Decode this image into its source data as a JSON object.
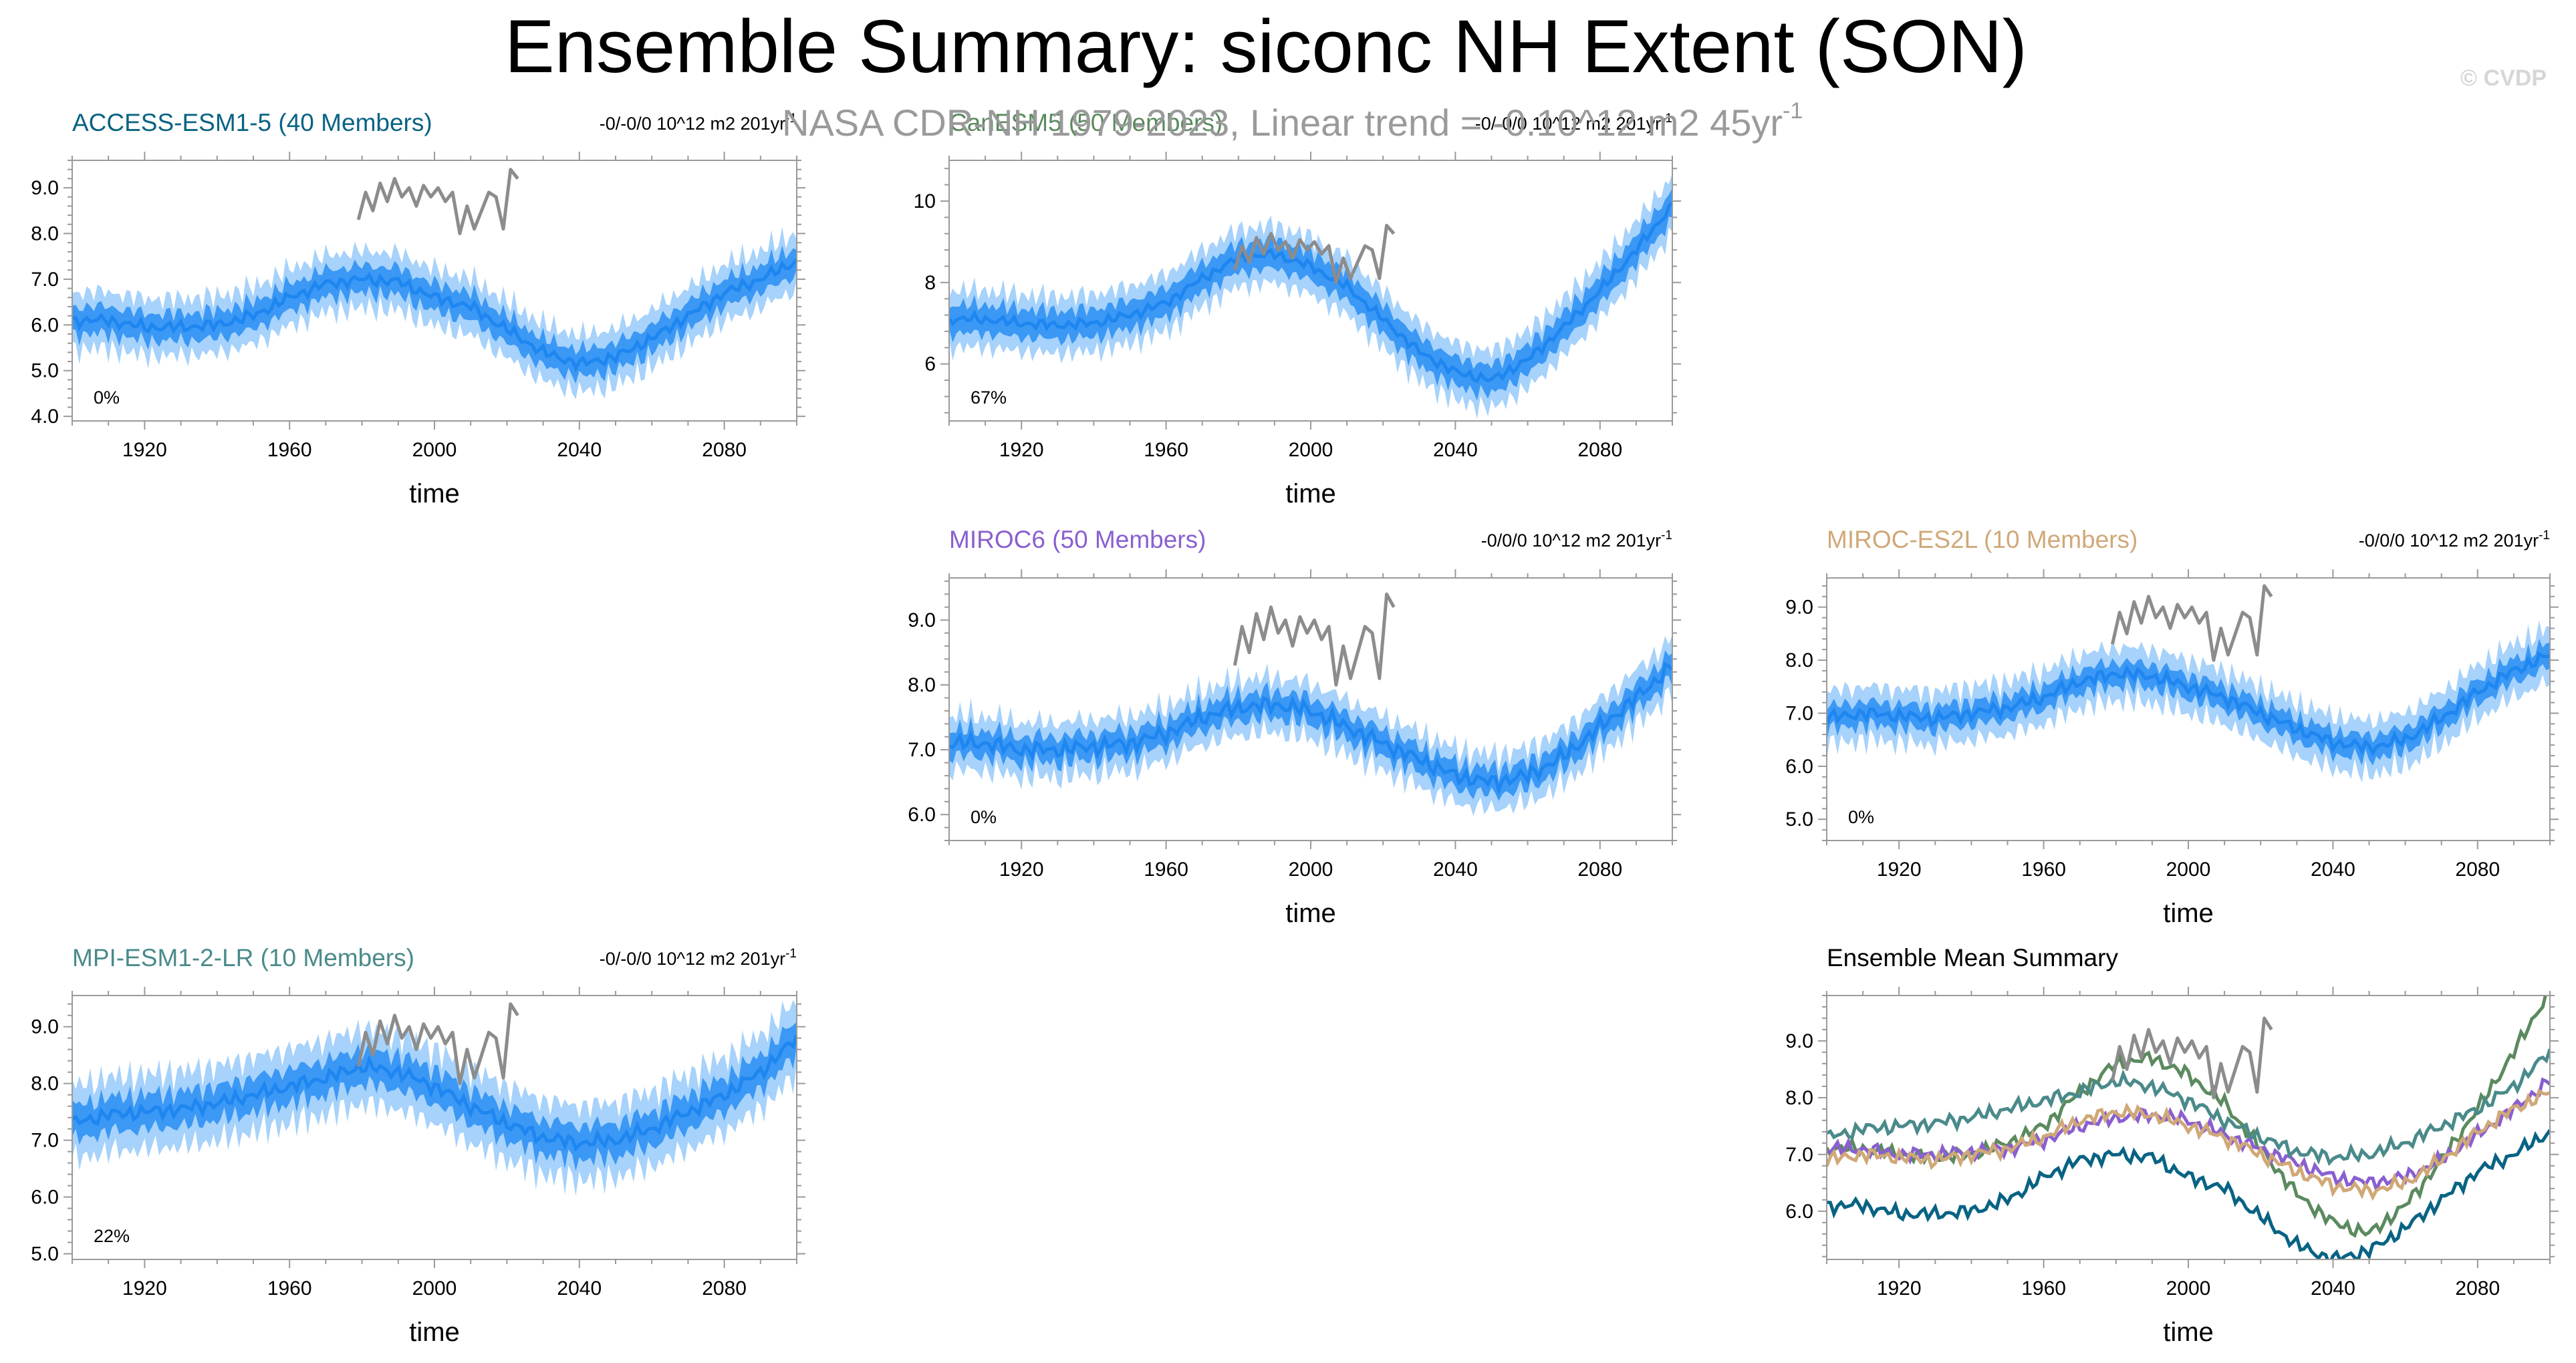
{
  "figure": {
    "title": "Ensemble Summary: siconc NH Extent (SON)",
    "observations_note": "NASA CDR-NH 1979-2023, Linear trend = -0.10^12 m2 45yr",
    "observations_note_superscript": "-1",
    "credit": "© CVDP"
  },
  "colors": {
    "ensemble_mean": "#1e86f0",
    "inner_band": "#3b98f5",
    "outer_band": "#a6d2fb",
    "observations": "#8c8c8c",
    "ACCESS-ESM1-5": "#086383",
    "CanESM5": "#5b8a5e",
    "MIROC6": "#8a5fd0",
    "MIROC-ES2L": "#d0a878",
    "MPI-ESM1-2-LR": "#4a8a8a"
  },
  "chart_data": [
    {
      "type": "line",
      "title": "ACCESS-ESM1-5 (40 Members)",
      "trend_text": "-0/-0/0 10^12 m2 201yr",
      "trend_superscript": "-1",
      "percent_label": "0%",
      "xlabel": "time",
      "xlim": [
        1900,
        2100
      ],
      "ylim": [
        3.9,
        9.6
      ],
      "x_ticks": [
        1920,
        1960,
        2000,
        2040,
        2080
      ],
      "y_ticks": [
        4.0,
        5.0,
        6.0,
        7.0,
        8.0,
        9.0
      ],
      "y_tick_labels": [
        "4.0",
        "5.0",
        "6.0",
        "7.0",
        "8.0",
        "9.0"
      ],
      "ensemble_mean": {
        "x": [
          1900,
          1910,
          1920,
          1930,
          1940,
          1950,
          1960,
          1970,
          1980,
          1990,
          2000,
          2010,
          2020,
          2030,
          2040,
          2050,
          2060,
          2070,
          2080,
          2090,
          2100
        ],
        "y": [
          6.1,
          6.1,
          5.95,
          5.95,
          6.0,
          6.2,
          6.6,
          6.9,
          7.0,
          6.95,
          6.6,
          6.4,
          5.9,
          5.4,
          5.15,
          5.3,
          5.7,
          6.2,
          6.7,
          7.0,
          7.4
        ]
      },
      "inner_band_halfwidth": 0.3,
      "outer_band_halfwidth": 0.62,
      "observations": {
        "x": [
          1979,
          1981,
          1983,
          1985,
          1987,
          1989,
          1991,
          1993,
          1995,
          1997,
          1999,
          2001,
          2003,
          2005,
          2007,
          2009,
          2011,
          2013,
          2015,
          2017,
          2019,
          2021,
          2023
        ],
        "y": [
          8.3,
          8.9,
          8.5,
          9.1,
          8.7,
          9.2,
          8.8,
          9.0,
          8.6,
          9.05,
          8.8,
          9.0,
          8.7,
          8.9,
          8.0,
          8.6,
          8.1,
          8.5,
          8.9,
          8.8,
          8.1,
          9.4,
          9.2
        ]
      }
    },
    {
      "type": "line",
      "title": "CanESM5 (50 Members)",
      "trend_text": "-0/-0/0 10^12 m2 201yr",
      "trend_superscript": "-1",
      "percent_label": "67%",
      "xlabel": "time",
      "xlim": [
        1900,
        2100
      ],
      "ylim": [
        4.6,
        11.0
      ],
      "x_ticks": [
        1920,
        1960,
        2000,
        2040,
        2080
      ],
      "y_ticks": [
        6,
        8,
        10
      ],
      "y_tick_labels": [
        "6",
        "8",
        "10"
      ],
      "ensemble_mean": {
        "x": [
          1900,
          1910,
          1920,
          1930,
          1940,
          1950,
          1960,
          1970,
          1980,
          1990,
          2000,
          2010,
          2020,
          2030,
          2040,
          2050,
          2060,
          2070,
          2080,
          2090,
          2100
        ],
        "y": [
          7.1,
          7.1,
          7.0,
          6.95,
          7.0,
          7.2,
          7.5,
          8.1,
          8.6,
          8.7,
          8.4,
          7.9,
          7.1,
          6.3,
          5.8,
          5.6,
          6.1,
          6.9,
          7.8,
          8.8,
          9.9
        ]
      },
      "inner_band_halfwidth": 0.35,
      "outer_band_halfwidth": 0.7,
      "observations": {
        "x": [
          1979,
          1981,
          1983,
          1985,
          1987,
          1989,
          1991,
          1993,
          1995,
          1997,
          1999,
          2001,
          2003,
          2005,
          2007,
          2009,
          2011,
          2013,
          2015,
          2017,
          2019,
          2021,
          2023
        ],
        "y": [
          8.3,
          8.9,
          8.5,
          9.1,
          8.7,
          9.2,
          8.8,
          9.0,
          8.6,
          9.05,
          8.8,
          9.0,
          8.7,
          8.9,
          8.0,
          8.6,
          8.1,
          8.5,
          8.9,
          8.8,
          8.1,
          9.4,
          9.2
        ]
      }
    },
    {
      "type": "line",
      "title": "MIROC6 (50 Members)",
      "trend_text": "-0/0/0 10^12 m2 201yr",
      "trend_superscript": "-1",
      "percent_label": "0%",
      "xlabel": "time",
      "xlim": [
        1900,
        2100
      ],
      "ylim": [
        5.6,
        9.65
      ],
      "x_ticks": [
        1920,
        1960,
        2000,
        2040,
        2080
      ],
      "y_ticks": [
        6.0,
        7.0,
        8.0,
        9.0
      ],
      "y_tick_labels": [
        "6.0",
        "7.0",
        "8.0",
        "9.0"
      ],
      "ensemble_mean": {
        "x": [
          1900,
          1910,
          1920,
          1930,
          1940,
          1950,
          1960,
          1970,
          1980,
          1990,
          2000,
          2010,
          2020,
          2030,
          2040,
          2050,
          2060,
          2070,
          2080,
          2090,
          2100
        ],
        "y": [
          7.1,
          7.1,
          7.0,
          7.0,
          7.05,
          7.1,
          7.25,
          7.5,
          7.65,
          7.7,
          7.6,
          7.35,
          7.1,
          6.85,
          6.6,
          6.5,
          6.6,
          6.9,
          7.35,
          7.8,
          8.3
        ]
      },
      "inner_band_halfwidth": 0.2,
      "outer_band_halfwidth": 0.42,
      "observations": {
        "x": [
          1979,
          1981,
          1983,
          1985,
          1987,
          1989,
          1991,
          1993,
          1995,
          1997,
          1999,
          2001,
          2003,
          2005,
          2007,
          2009,
          2011,
          2013,
          2015,
          2017,
          2019,
          2021,
          2023
        ],
        "y": [
          8.3,
          8.9,
          8.5,
          9.1,
          8.7,
          9.2,
          8.8,
          9.0,
          8.6,
          9.05,
          8.8,
          9.0,
          8.7,
          8.9,
          8.0,
          8.6,
          8.1,
          8.5,
          8.9,
          8.8,
          8.1,
          9.4,
          9.2
        ]
      }
    },
    {
      "type": "line",
      "title": "MIROC-ES2L (10 Members)",
      "trend_text": "-0/0/0 10^12 m2 201yr",
      "trend_superscript": "-1",
      "percent_label": "0%",
      "xlabel": "time",
      "xlim": [
        1900,
        2100
      ],
      "ylim": [
        4.6,
        9.55
      ],
      "x_ticks": [
        1920,
        1960,
        2000,
        2040,
        2080
      ],
      "y_ticks": [
        5.0,
        6.0,
        7.0,
        8.0,
        9.0
      ],
      "y_tick_labels": [
        "5.0",
        "6.0",
        "7.0",
        "8.0",
        "9.0"
      ],
      "ensemble_mean": {
        "x": [
          1900,
          1910,
          1920,
          1930,
          1940,
          1950,
          1960,
          1970,
          1980,
          1990,
          2000,
          2010,
          2020,
          2030,
          2040,
          2050,
          2060,
          2070,
          2080,
          2090,
          2100
        ],
        "y": [
          6.9,
          7.0,
          6.95,
          6.9,
          7.0,
          7.1,
          7.3,
          7.6,
          7.75,
          7.7,
          7.5,
          7.3,
          7.0,
          6.7,
          6.45,
          6.35,
          6.5,
          6.9,
          7.4,
          7.8,
          8.1
        ]
      },
      "inner_band_halfwidth": 0.22,
      "outer_band_halfwidth": 0.5,
      "observations": {
        "x": [
          1979,
          1981,
          1983,
          1985,
          1987,
          1989,
          1991,
          1993,
          1995,
          1997,
          1999,
          2001,
          2003,
          2005,
          2007,
          2009,
          2011,
          2013,
          2015,
          2017,
          2019,
          2021,
          2023
        ],
        "y": [
          8.3,
          8.9,
          8.5,
          9.1,
          8.7,
          9.2,
          8.8,
          9.0,
          8.6,
          9.05,
          8.8,
          9.0,
          8.7,
          8.9,
          8.0,
          8.6,
          8.1,
          8.5,
          8.9,
          8.8,
          8.1,
          9.4,
          9.2
        ]
      }
    },
    {
      "type": "line",
      "title": "MPI-ESM1-2-LR (10 Members)",
      "trend_text": "-0/-0/0 10^12 m2 201yr",
      "trend_superscript": "-1",
      "percent_label": "22%",
      "xlabel": "time",
      "xlim": [
        1900,
        2100
      ],
      "ylim": [
        4.9,
        9.55
      ],
      "x_ticks": [
        1920,
        1960,
        2000,
        2040,
        2080
      ],
      "y_ticks": [
        5.0,
        6.0,
        7.0,
        8.0,
        9.0
      ],
      "y_tick_labels": [
        "5.0",
        "6.0",
        "7.0",
        "8.0",
        "9.0"
      ],
      "ensemble_mean": {
        "x": [
          1900,
          1910,
          1920,
          1930,
          1940,
          1950,
          1960,
          1970,
          1980,
          1990,
          2000,
          2010,
          2020,
          2030,
          2040,
          2050,
          2060,
          2070,
          2080,
          2090,
          2100
        ],
        "y": [
          7.3,
          7.45,
          7.5,
          7.55,
          7.65,
          7.8,
          7.95,
          8.1,
          8.3,
          8.2,
          7.95,
          7.6,
          7.3,
          7.05,
          6.95,
          7.0,
          7.2,
          7.5,
          7.8,
          8.2,
          8.8
        ]
      },
      "inner_band_halfwidth": 0.3,
      "outer_band_halfwidth": 0.65,
      "observations": {
        "x": [
          1979,
          1981,
          1983,
          1985,
          1987,
          1989,
          1991,
          1993,
          1995,
          1997,
          1999,
          2001,
          2003,
          2005,
          2007,
          2009,
          2011,
          2013,
          2015,
          2017,
          2019,
          2021,
          2023
        ],
        "y": [
          8.3,
          8.9,
          8.5,
          9.1,
          8.7,
          9.2,
          8.8,
          9.0,
          8.6,
          9.05,
          8.8,
          9.0,
          8.7,
          8.9,
          8.0,
          8.6,
          8.1,
          8.5,
          8.9,
          8.8,
          8.1,
          9.4,
          9.2
        ]
      }
    },
    {
      "type": "line",
      "title": "Ensemble Mean Summary",
      "xlabel": "time",
      "xlim": [
        1900,
        2100
      ],
      "ylim": [
        5.15,
        9.8
      ],
      "x_ticks": [
        1920,
        1960,
        2000,
        2040,
        2080
      ],
      "y_ticks": [
        6.0,
        7.0,
        8.0,
        9.0
      ],
      "y_tick_labels": [
        "6.0",
        "7.0",
        "8.0",
        "9.0"
      ],
      "series": [
        {
          "color_key": "ACCESS-ESM1-5",
          "x": [
            1900,
            1910,
            1920,
            1930,
            1940,
            1950,
            1960,
            1970,
            1980,
            1990,
            2000,
            2010,
            2020,
            2030,
            2040,
            2050,
            2060,
            2070,
            2080,
            2090,
            2100
          ],
          "y": [
            6.1,
            6.1,
            5.95,
            5.95,
            6.0,
            6.2,
            6.6,
            6.9,
            7.0,
            6.95,
            6.6,
            6.4,
            5.9,
            5.4,
            5.15,
            5.3,
            5.7,
            6.2,
            6.7,
            7.0,
            7.4
          ]
        },
        {
          "color_key": "CanESM5",
          "x": [
            1900,
            1910,
            1920,
            1930,
            1940,
            1950,
            1960,
            1970,
            1980,
            1990,
            2000,
            2010,
            2020,
            2030,
            2040,
            2050,
            2060,
            2070,
            2080,
            2090,
            2100
          ],
          "y": [
            7.1,
            7.1,
            7.0,
            6.95,
            7.0,
            7.2,
            7.5,
            8.1,
            8.6,
            8.7,
            8.4,
            7.9,
            7.1,
            6.3,
            5.8,
            5.6,
            6.1,
            6.9,
            7.8,
            8.8,
            9.9
          ]
        },
        {
          "color_key": "MIROC6",
          "x": [
            1900,
            1910,
            1920,
            1930,
            1940,
            1950,
            1960,
            1970,
            1980,
            1990,
            2000,
            2010,
            2020,
            2030,
            2040,
            2050,
            2060,
            2070,
            2080,
            2090,
            2100
          ],
          "y": [
            7.1,
            7.1,
            7.0,
            7.0,
            7.05,
            7.1,
            7.25,
            7.5,
            7.65,
            7.7,
            7.6,
            7.35,
            7.1,
            6.85,
            6.6,
            6.5,
            6.6,
            6.9,
            7.35,
            7.8,
            8.3
          ]
        },
        {
          "color_key": "MIROC-ES2L",
          "x": [
            1900,
            1910,
            1920,
            1930,
            1940,
            1950,
            1960,
            1970,
            1980,
            1990,
            2000,
            2010,
            2020,
            2030,
            2040,
            2050,
            2060,
            2070,
            2080,
            2090,
            2100
          ],
          "y": [
            6.9,
            7.0,
            6.95,
            6.9,
            7.0,
            7.1,
            7.3,
            7.6,
            7.75,
            7.7,
            7.5,
            7.3,
            7.0,
            6.7,
            6.45,
            6.35,
            6.5,
            6.9,
            7.4,
            7.8,
            8.1
          ]
        },
        {
          "color_key": "MPI-ESM1-2-LR",
          "x": [
            1900,
            1910,
            1920,
            1930,
            1940,
            1950,
            1960,
            1970,
            1980,
            1990,
            2000,
            2010,
            2020,
            2030,
            2040,
            2050,
            2060,
            2070,
            2080,
            2090,
            2100
          ],
          "y": [
            7.3,
            7.45,
            7.5,
            7.55,
            7.65,
            7.8,
            7.95,
            8.1,
            8.3,
            8.2,
            7.95,
            7.6,
            7.3,
            7.05,
            6.95,
            7.0,
            7.2,
            7.5,
            7.8,
            8.2,
            8.8
          ]
        }
      ],
      "observations": {
        "x": [
          1979,
          1981,
          1983,
          1985,
          1987,
          1989,
          1991,
          1993,
          1995,
          1997,
          1999,
          2001,
          2003,
          2005,
          2007,
          2009,
          2011,
          2013,
          2015,
          2017,
          2019,
          2021,
          2023
        ],
        "y": [
          8.3,
          8.9,
          8.5,
          9.1,
          8.7,
          9.2,
          8.8,
          9.0,
          8.6,
          9.05,
          8.8,
          9.0,
          8.7,
          8.9,
          8.0,
          8.6,
          8.1,
          8.5,
          8.9,
          8.8,
          8.1,
          9.4,
          9.2
        ]
      }
    }
  ]
}
